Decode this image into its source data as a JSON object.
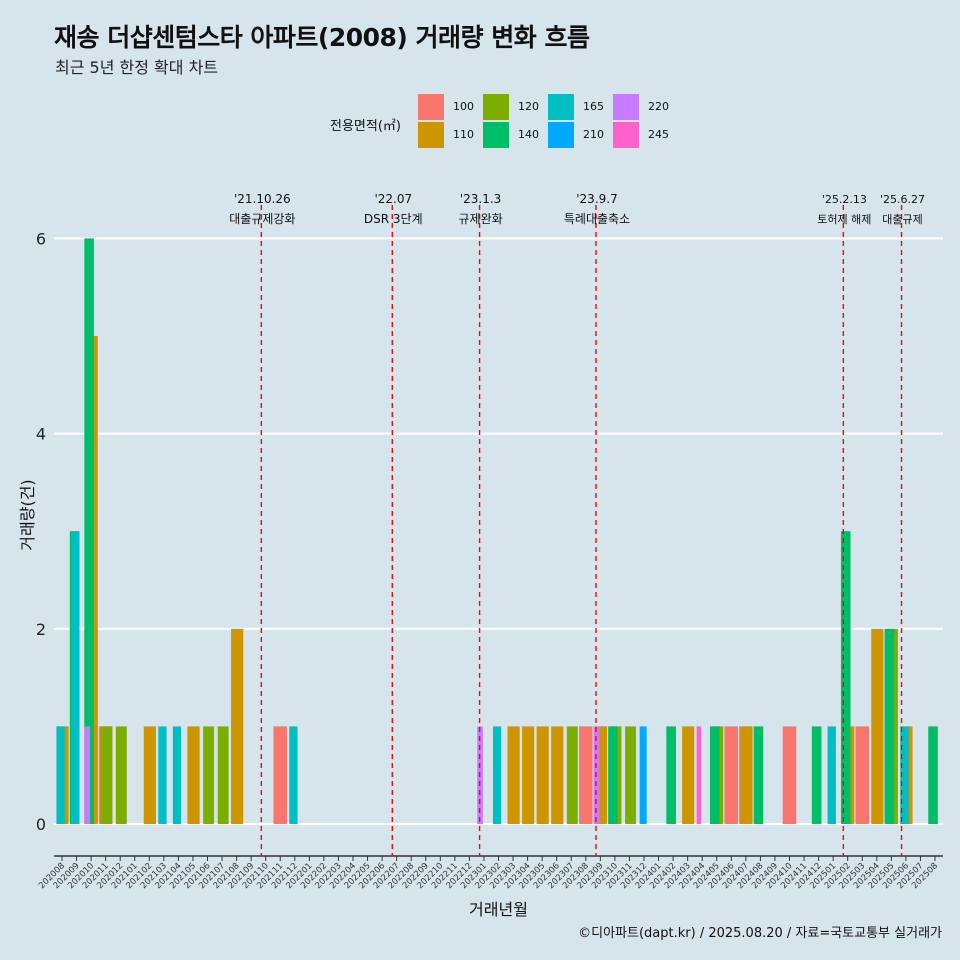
{
  "title": "재송 더샵센텀스타 아파트(2008) 거래량 변화 흐름",
  "subtitle": "최근 5년 한정 확대 차트",
  "caption": "©디아파트(dapt.kr) / 2025.08.20 / 자료=국토교통부 실거래가",
  "legend": {
    "title": "전용면적(㎡)",
    "items": [
      {
        "label": "100",
        "color": "#F8766D"
      },
      {
        "label": "110",
        "color": "#CD9600"
      },
      {
        "label": "120",
        "color": "#7CAE00"
      },
      {
        "label": "140",
        "color": "#00BE67"
      },
      {
        "label": "165",
        "color": "#00BFC4"
      },
      {
        "label": "210",
        "color": "#00A9FF"
      },
      {
        "label": "220",
        "color": "#C77CFF"
      },
      {
        "label": "245",
        "color": "#FF61CC"
      }
    ]
  },
  "chart_data": {
    "type": "bar",
    "xlabel": "거래년월",
    "ylabel": "거래량(건)",
    "ylim": [
      0,
      6.3
    ],
    "yticks": [
      0,
      2,
      4,
      6
    ],
    "grid": true,
    "legend_placement": "top",
    "categories": [
      "202008",
      "202009",
      "202010",
      "202011",
      "202012",
      "202101",
      "202102",
      "202103",
      "202104",
      "202105",
      "202106",
      "202107",
      "202108",
      "202109",
      "202110",
      "202111",
      "202112",
      "202201",
      "202202",
      "202203",
      "202204",
      "202205",
      "202206",
      "202207",
      "202208",
      "202209",
      "202210",
      "202211",
      "202212",
      "202301",
      "202302",
      "202303",
      "202304",
      "202305",
      "202306",
      "202307",
      "202308",
      "202309",
      "202310",
      "202311",
      "202312",
      "202401",
      "202402",
      "202403",
      "202404",
      "202405",
      "202406",
      "202407",
      "202408",
      "202409",
      "202410",
      "202411",
      "202412",
      "202501",
      "202502",
      "202503",
      "202504",
      "202505",
      "202506",
      "202507",
      "202508"
    ],
    "series": [
      {
        "name": "100",
        "color": "#F8766D",
        "values": [
          0,
          0,
          2,
          1,
          0,
          0,
          0,
          0,
          0,
          0,
          0,
          0,
          0,
          0,
          0,
          1,
          0,
          0,
          0,
          0,
          0,
          0,
          0,
          0,
          0,
          0,
          0,
          0,
          0,
          0,
          0,
          0,
          0,
          0,
          0,
          0,
          1,
          1,
          0,
          0,
          0,
          0,
          0,
          0,
          0,
          0,
          1,
          1,
          0,
          0,
          1,
          0,
          0,
          0,
          0,
          1,
          0,
          0,
          0,
          0,
          0
        ]
      },
      {
        "name": "110",
        "color": "#CD9600",
        "values": [
          1,
          0,
          5,
          1,
          0,
          0,
          1,
          0,
          0,
          1,
          0,
          0,
          2,
          0,
          0,
          0,
          0,
          0,
          0,
          0,
          0,
          0,
          0,
          0,
          0,
          0,
          0,
          0,
          0,
          0,
          0,
          1,
          1,
          1,
          1,
          0,
          0,
          1,
          0,
          0,
          0,
          0,
          0,
          1,
          0,
          0,
          0,
          1,
          0,
          0,
          0,
          0,
          0,
          0,
          1,
          0,
          2,
          0,
          1,
          0,
          0
        ]
      },
      {
        "name": "120",
        "color": "#7CAE00",
        "values": [
          0,
          0,
          0,
          1,
          1,
          0,
          0,
          0,
          0,
          0,
          1,
          1,
          0,
          0,
          0,
          0,
          0,
          0,
          0,
          0,
          0,
          0,
          0,
          0,
          0,
          0,
          0,
          0,
          0,
          0,
          0,
          0,
          0,
          0,
          0,
          1,
          0,
          0,
          1,
          1,
          0,
          0,
          0,
          0,
          0,
          1,
          0,
          0,
          0,
          0,
          0,
          0,
          0,
          0,
          0,
          0,
          0,
          2,
          0,
          0,
          0
        ]
      },
      {
        "name": "140",
        "color": "#00BE67",
        "values": [
          0,
          3,
          6,
          0,
          0,
          0,
          0,
          0,
          0,
          0,
          0,
          0,
          0,
          0,
          0,
          0,
          0,
          0,
          0,
          0,
          0,
          0,
          0,
          0,
          0,
          0,
          0,
          0,
          0,
          0,
          0,
          0,
          0,
          0,
          0,
          0,
          0,
          0,
          1,
          0,
          0,
          0,
          1,
          0,
          0,
          1,
          0,
          0,
          1,
          0,
          0,
          0,
          1,
          0,
          3,
          0,
          0,
          2,
          0,
          0,
          1
        ]
      },
      {
        "name": "165",
        "color": "#00BFC4",
        "values": [
          1,
          3,
          0,
          0,
          0,
          0,
          0,
          1,
          1,
          0,
          0,
          0,
          0,
          0,
          0,
          0,
          1,
          0,
          0,
          0,
          0,
          0,
          0,
          0,
          0,
          0,
          0,
          0,
          0,
          0,
          1,
          0,
          0,
          0,
          0,
          0,
          0,
          0,
          0,
          0,
          0,
          0,
          0,
          0,
          0,
          0,
          0,
          0,
          0,
          0,
          0,
          0,
          0,
          1,
          0,
          0,
          0,
          0,
          1,
          0,
          0
        ]
      },
      {
        "name": "210",
        "color": "#00A9FF",
        "values": [
          0,
          0,
          0,
          0,
          0,
          0,
          0,
          0,
          0,
          0,
          0,
          0,
          0,
          0,
          0,
          0,
          0,
          0,
          0,
          0,
          0,
          0,
          0,
          0,
          0,
          0,
          0,
          0,
          0,
          0,
          0,
          0,
          0,
          0,
          0,
          0,
          0,
          0,
          0,
          0,
          1,
          0,
          0,
          0,
          0,
          0,
          0,
          0,
          0,
          0,
          0,
          0,
          0,
          0,
          0,
          0,
          0,
          0,
          0,
          0,
          0
        ]
      },
      {
        "name": "220",
        "color": "#C77CFF",
        "values": [
          0,
          0,
          1,
          0,
          0,
          0,
          0,
          0,
          0,
          0,
          0,
          0,
          0,
          0,
          0,
          0,
          0,
          0,
          0,
          0,
          0,
          0,
          0,
          0,
          0,
          0,
          0,
          0,
          0,
          1,
          0,
          0,
          0,
          0,
          0,
          0,
          0,
          1,
          0,
          0,
          0,
          0,
          0,
          0,
          0,
          0,
          0,
          0,
          0,
          0,
          0,
          0,
          0,
          0,
          0,
          0,
          0,
          0,
          0,
          0,
          0
        ]
      },
      {
        "name": "245",
        "color": "#FF61CC",
        "values": [
          0,
          0,
          0,
          0,
          0,
          0,
          0,
          0,
          0,
          0,
          0,
          0,
          0,
          0,
          0,
          0,
          0,
          0,
          0,
          0,
          0,
          0,
          0,
          0,
          0,
          0,
          0,
          0,
          0,
          0,
          0,
          0,
          0,
          0,
          0,
          0,
          0,
          0,
          0,
          0,
          0,
          0,
          0,
          0,
          1,
          0,
          0,
          0,
          0,
          0,
          0,
          0,
          0,
          0,
          0,
          0,
          0,
          0,
          0,
          0,
          0
        ]
      }
    ],
    "events": [
      {
        "month": "202110",
        "date": "'21.10.26",
        "label": "대출규제강화"
      },
      {
        "month": "202207",
        "date": "'22.07",
        "label": "DSR 3단계"
      },
      {
        "month": "202301",
        "date": "'23.1.3",
        "label": "규제완화"
      },
      {
        "month": "202309",
        "date": "'23.9.7",
        "label": "특례대출축소"
      },
      {
        "month": "202502",
        "date": "'25.2.13",
        "label": "토허제 해제"
      },
      {
        "month": "202506",
        "date": "'25.6.27",
        "label": "대출규제"
      }
    ]
  }
}
